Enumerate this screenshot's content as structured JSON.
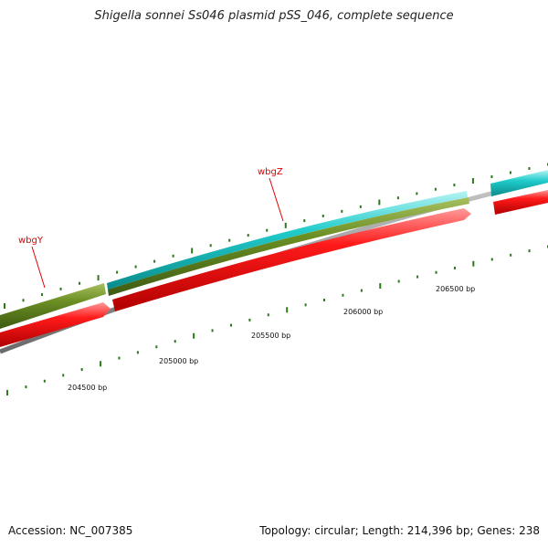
{
  "title": "Shigella sonnei Ss046 plasmid pSS_046, complete sequence",
  "footer": {
    "accession": "Accession: NC_007385",
    "summary": "Topology: circular; Length: 214,396 bp; Genes: 238"
  },
  "genes": {
    "wbgY": "wbgY",
    "wbgZ": "wbgZ"
  },
  "ticks": {
    "t204500": "204500 bp",
    "t205000": "205000 bp",
    "t205500": "205500 bp",
    "t206000": "206000 bp",
    "t206500": "206500 bp"
  },
  "colors": {
    "cds_forward": "#e00000",
    "gene_olive": "#6b8e23",
    "gene_cyan": "#1fc8c8",
    "backbone": "#888888",
    "tick_green": "#2a7a1a",
    "label_red": "#e00000"
  }
}
